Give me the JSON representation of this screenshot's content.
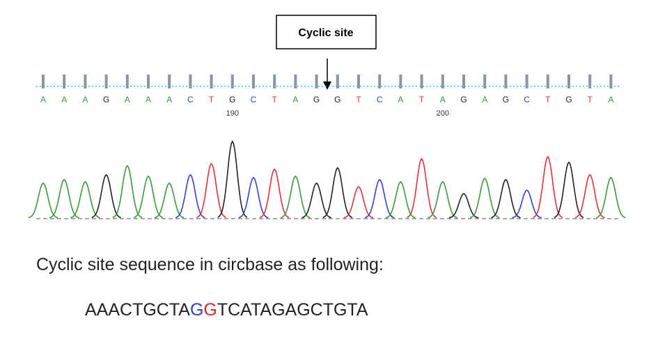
{
  "callout": "Cyclic site",
  "bases": [
    "A",
    "A",
    "A",
    "G",
    "A",
    "A",
    "A",
    "C",
    "T",
    "G",
    "C",
    "T",
    "A",
    "G",
    "G",
    "T",
    "C",
    "A",
    "T",
    "A",
    "G",
    "A",
    "G",
    "C",
    "T",
    "G",
    "T",
    "A"
  ],
  "positions": [
    "190",
    "200"
  ],
  "caption": "Cyclic site sequence in circbase as following:",
  "sequence": [
    "AAACTGCTA",
    "G",
    "G",
    "TCATAGAGCTGTA"
  ]
}
